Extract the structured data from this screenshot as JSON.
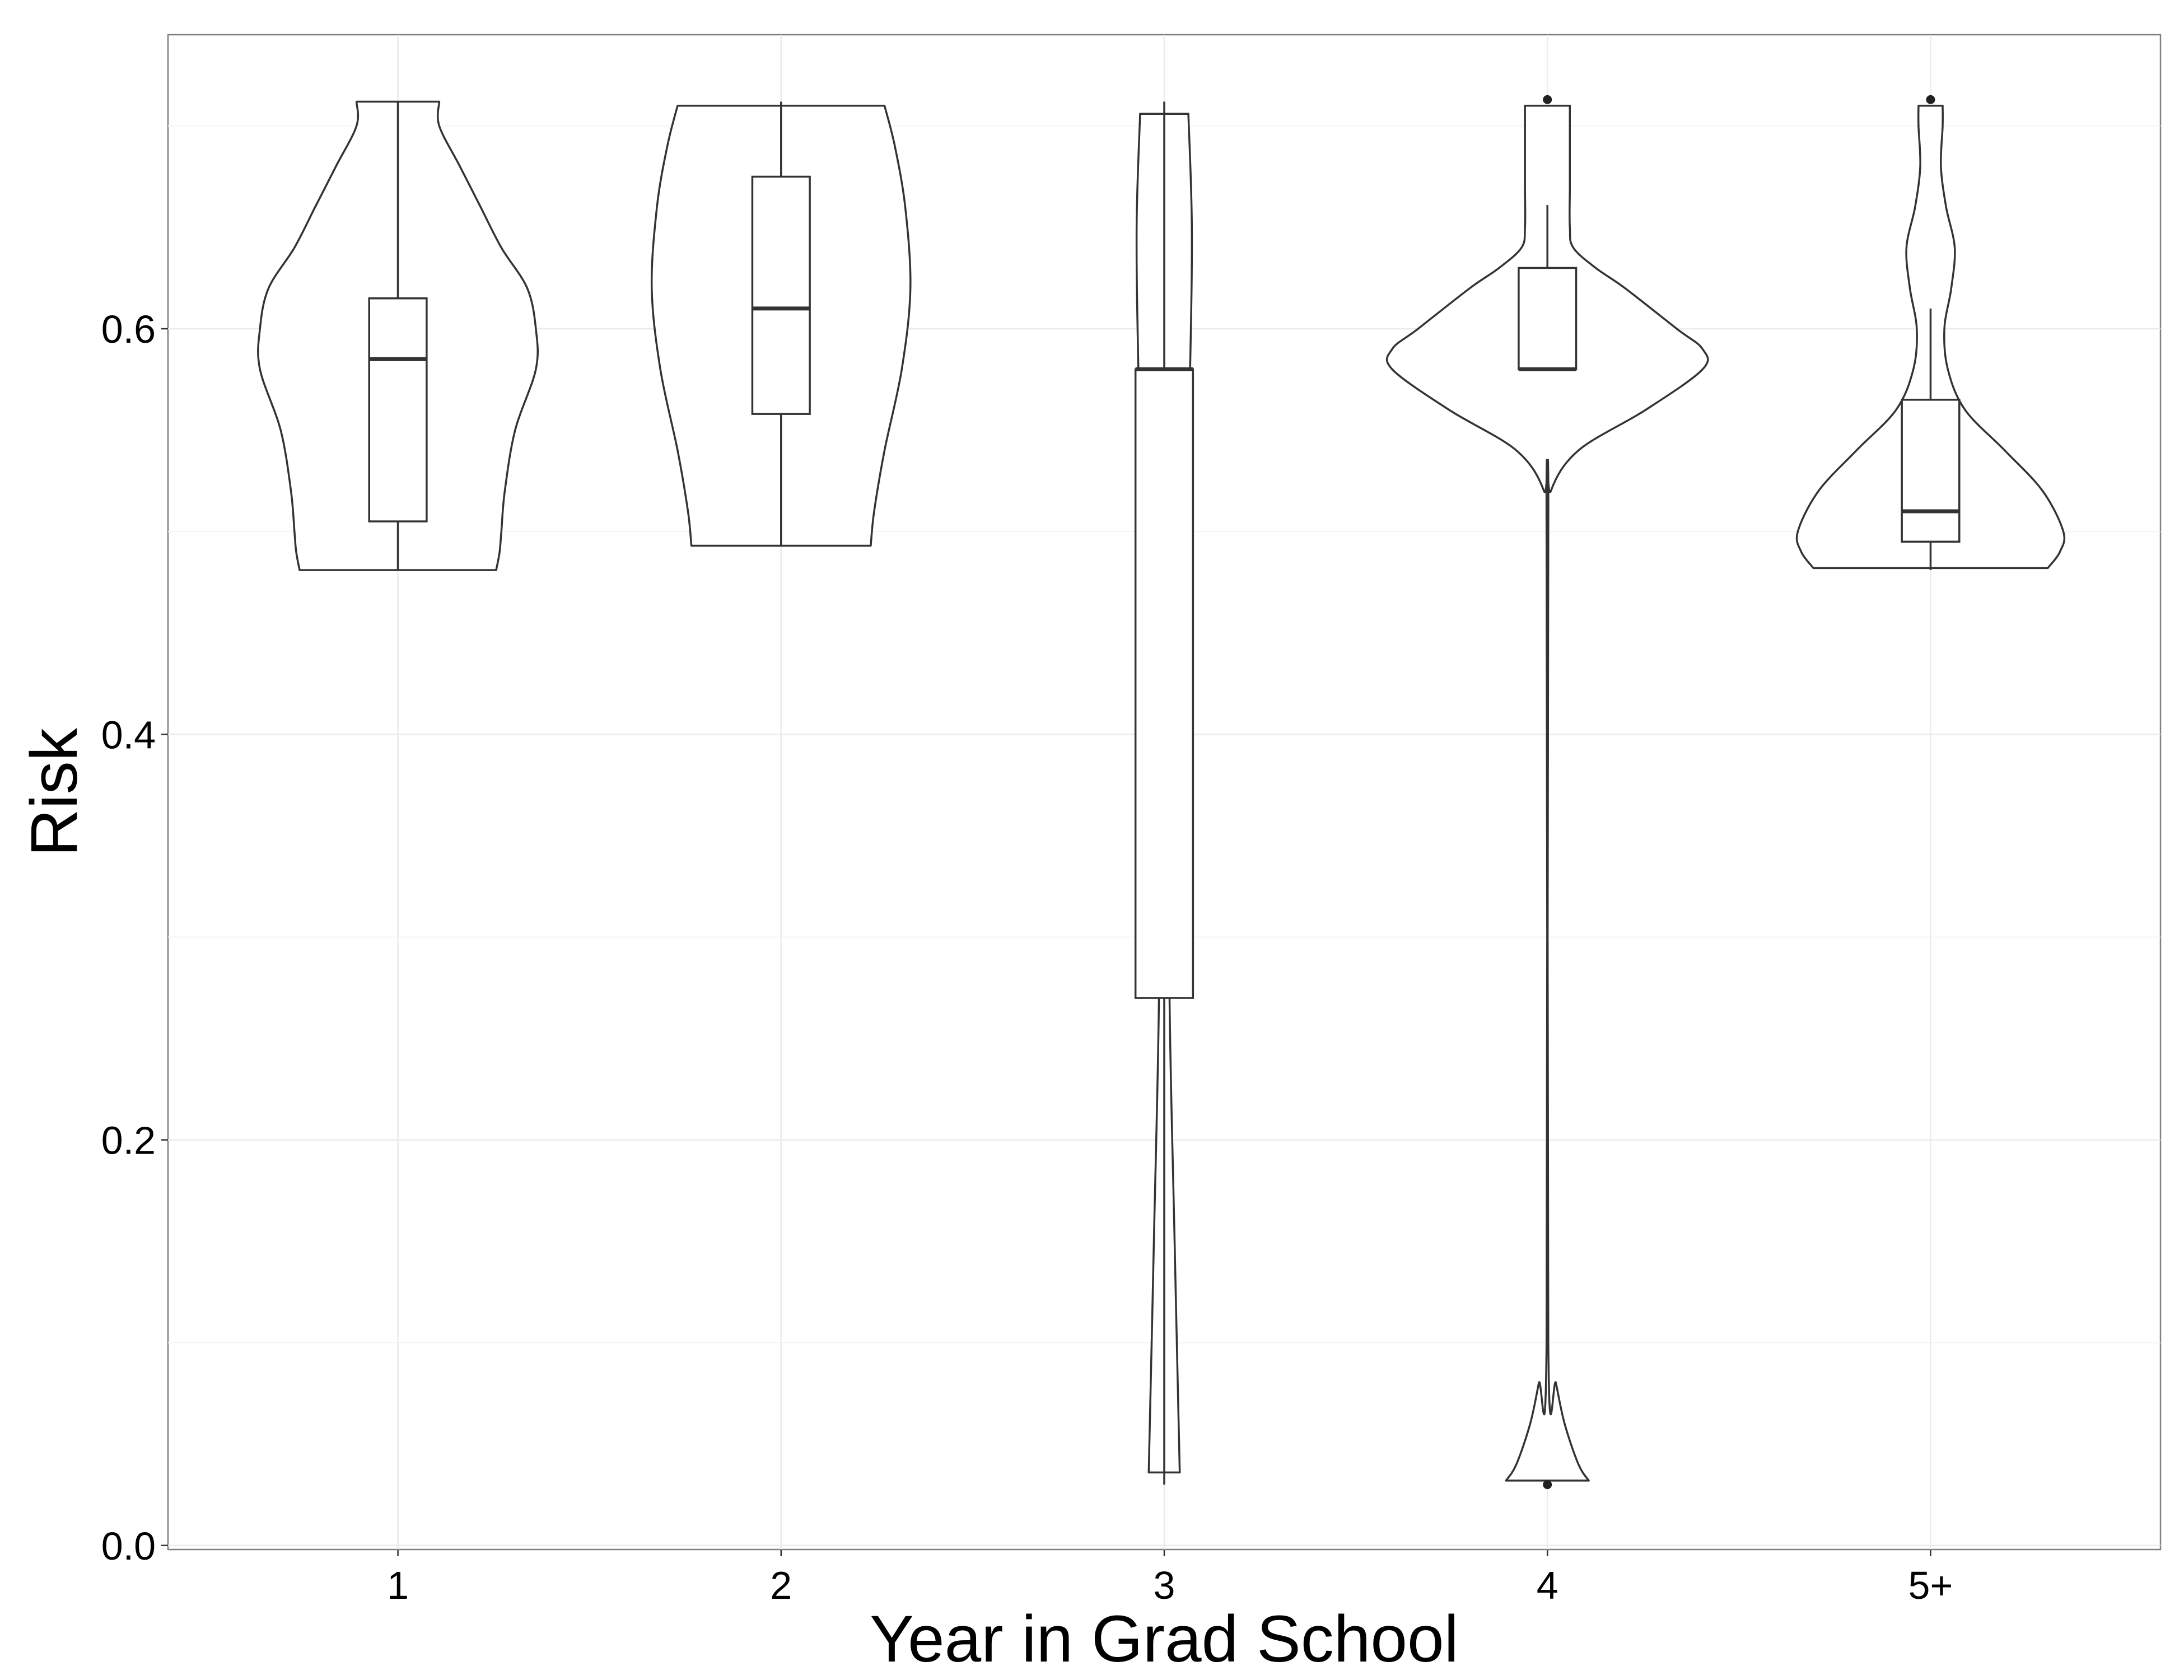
{
  "chart_data": {
    "type": "violin",
    "xlabel": "Year in Grad School",
    "ylabel": "Risk",
    "categories": [
      "1",
      "2",
      "3",
      "4",
      "5+"
    ],
    "ylim": [
      -0.002,
      0.745
    ],
    "yticks": [
      0.0,
      0.2,
      0.4,
      0.6
    ],
    "ytick_labels": [
      "0.0",
      "0.2",
      "0.4",
      "0.6"
    ],
    "grid": true,
    "legend": "none",
    "groups": [
      {
        "category": "1",
        "violin_min": 0.481,
        "violin_max": 0.712,
        "box": {
          "q1": 0.505,
          "median": 0.585,
          "q3": 0.615,
          "whisker_low": 0.481,
          "whisker_high": 0.712
        },
        "outliers": [],
        "density_profile": [
          [
            0.481,
            0.57
          ],
          [
            0.49,
            0.59
          ],
          [
            0.5,
            0.6
          ],
          [
            0.52,
            0.62
          ],
          [
            0.55,
            0.68
          ],
          [
            0.58,
            0.8
          ],
          [
            0.6,
            0.8
          ],
          [
            0.62,
            0.75
          ],
          [
            0.64,
            0.6
          ],
          [
            0.66,
            0.48
          ],
          [
            0.68,
            0.36
          ],
          [
            0.7,
            0.24
          ],
          [
            0.712,
            0.24
          ]
        ]
      },
      {
        "category": "2",
        "violin_min": 0.493,
        "violin_max": 0.71,
        "box": {
          "q1": 0.558,
          "median": 0.61,
          "q3": 0.675,
          "whisker_low": 0.493,
          "whisker_high": 0.712
        },
        "outliers": [],
        "density_profile": [
          [
            0.493,
            0.52
          ],
          [
            0.51,
            0.54
          ],
          [
            0.54,
            0.6
          ],
          [
            0.58,
            0.7
          ],
          [
            0.62,
            0.75
          ],
          [
            0.66,
            0.72
          ],
          [
            0.69,
            0.66
          ],
          [
            0.71,
            0.6
          ]
        ]
      },
      {
        "category": "3",
        "violin_min": 0.036,
        "violin_max": 0.706,
        "box": {
          "q1": 0.27,
          "median": 0.58,
          "q3": 0.58,
          "whisker_low": 0.03,
          "whisker_high": 0.712
        },
        "outliers": [],
        "density_profile": [
          [
            0.036,
            0.09
          ],
          [
            0.15,
            0.06
          ],
          [
            0.28,
            0.03
          ],
          [
            0.38,
            0.05
          ],
          [
            0.48,
            0.12
          ],
          [
            0.58,
            0.15
          ],
          [
            0.65,
            0.16
          ],
          [
            0.706,
            0.14
          ]
        ]
      },
      {
        "category": "4",
        "violin_min": 0.032,
        "violin_max": 0.71,
        "box": {
          "q1": 0.58,
          "median": 0.58,
          "q3": 0.63,
          "whisker_low": 0.58,
          "whisker_high": 0.661
        },
        "outliers": [
          0.03,
          0.713
        ],
        "density_profile": [
          [
            0.032,
            0.24
          ],
          [
            0.04,
            0.18
          ],
          [
            0.06,
            0.1
          ],
          [
            0.08,
            0.05
          ],
          [
            0.1,
            0.005
          ],
          [
            0.5,
            0.005
          ],
          [
            0.52,
            0.02
          ],
          [
            0.54,
            0.18
          ],
          [
            0.56,
            0.57
          ],
          [
            0.58,
            0.9
          ],
          [
            0.59,
            0.9
          ],
          [
            0.6,
            0.75
          ],
          [
            0.62,
            0.45
          ],
          [
            0.63,
            0.28
          ],
          [
            0.64,
            0.15
          ],
          [
            0.65,
            0.13
          ],
          [
            0.67,
            0.13
          ],
          [
            0.69,
            0.13
          ],
          [
            0.71,
            0.13
          ]
        ]
      },
      {
        "category": "5+",
        "violin_min": 0.482,
        "violin_max": 0.71,
        "box": {
          "q1": 0.495,
          "median": 0.51,
          "q3": 0.565,
          "whisker_low": 0.481,
          "whisker_high": 0.61
        },
        "outliers": [
          0.713
        ],
        "density_profile": [
          [
            0.482,
            0.68
          ],
          [
            0.49,
            0.75
          ],
          [
            0.5,
            0.77
          ],
          [
            0.52,
            0.65
          ],
          [
            0.54,
            0.43
          ],
          [
            0.56,
            0.2
          ],
          [
            0.58,
            0.1
          ],
          [
            0.6,
            0.08
          ],
          [
            0.62,
            0.12
          ],
          [
            0.64,
            0.14
          ],
          [
            0.66,
            0.09
          ],
          [
            0.68,
            0.06
          ],
          [
            0.7,
            0.07
          ],
          [
            0.71,
            0.07
          ]
        ]
      }
    ]
  }
}
